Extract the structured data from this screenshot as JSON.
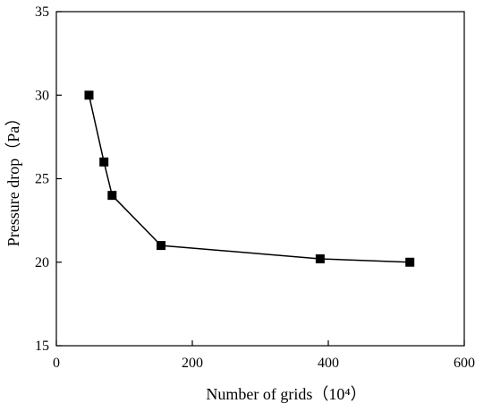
{
  "chart_data": {
    "type": "line",
    "title": "",
    "xlabel": "Number of grids（10⁴）",
    "ylabel": "Pressure drop（Pa）",
    "xlim": [
      0,
      600
    ],
    "ylim": [
      15,
      35
    ],
    "xticks": [
      0,
      200,
      400,
      600
    ],
    "yticks": [
      15,
      20,
      25,
      30,
      35
    ],
    "xtick_labels": [
      "0",
      "200",
      "400",
      "600"
    ],
    "ytick_labels": [
      "15",
      "20",
      "25",
      "30",
      "35"
    ],
    "grid": false,
    "legend": "none",
    "marker": "square",
    "line_color": "#000000",
    "marker_color": "#000000",
    "series": [
      {
        "x": [
          48,
          70,
          82,
          154,
          388,
          520
        ],
        "y": [
          30,
          26,
          24,
          21,
          20.2,
          20
        ]
      }
    ]
  }
}
